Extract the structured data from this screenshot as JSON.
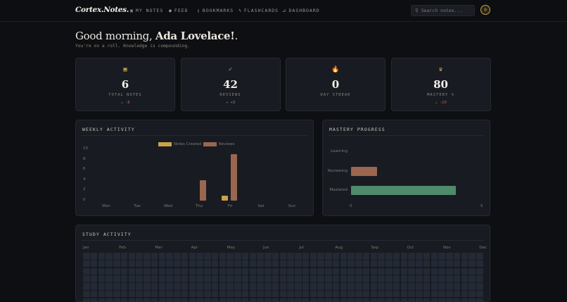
{
  "nav": {
    "logo": "Cortex.Notes.",
    "items": [
      {
        "label": "MY NOTES",
        "icon": "note-icon"
      },
      {
        "label": "FEED",
        "icon": "globe-icon"
      },
      {
        "label": "BOOKMARKS",
        "icon": "bookmark-icon"
      },
      {
        "label": "FLASHCARDS",
        "icon": "bolt-icon"
      },
      {
        "label": "DASHBOARD",
        "icon": "chart-icon"
      }
    ],
    "search_placeholder": "Search notes...",
    "avatar": "0"
  },
  "greeting": {
    "prefix": "Good morning, ",
    "name": "Ada Lovelace!",
    "suffix": ".",
    "subtitle": "You're on a roll. Knowledge is compounding."
  },
  "stats": [
    {
      "icon": "note-icon",
      "value": "6",
      "label": "TOTAL NOTES",
      "delta": "↘ -8",
      "delta_color": "#c0594a"
    },
    {
      "icon": "check-circle-icon",
      "value": "42",
      "label": "REVIEWS",
      "delta": "↗ +3",
      "delta_color": "#5f9f7c"
    },
    {
      "icon": "fire-icon",
      "value": "0",
      "label": "DAY STREAK",
      "delta": ""
    },
    {
      "icon": "trophy-icon",
      "value": "80",
      "label": "MASTERY %",
      "delta": "↘ -20",
      "delta_color": "#c0594a"
    }
  ],
  "colors": {
    "accent": "#c9a24a",
    "notes": "#c9a24a",
    "reviews": "#9a6650",
    "mastered": "#4f8a6a",
    "reviewing": "#9a6650"
  },
  "chart_data": [
    {
      "type": "bar",
      "title": "WEEKLY ACTIVITY",
      "categories": [
        "Mon",
        "Tue",
        "Wed",
        "Thu",
        "Fri",
        "Sat",
        "Sun"
      ],
      "series": [
        {
          "name": "Notes Created",
          "values": [
            0,
            0,
            0,
            0,
            1,
            0,
            0
          ]
        },
        {
          "name": "Reviews",
          "values": [
            0,
            0,
            0,
            4,
            9,
            0,
            0
          ]
        }
      ],
      "ylim": [
        0,
        10
      ],
      "yticks": [
        "0",
        "2",
        "4",
        "6",
        "8",
        "10"
      ],
      "legend": "top"
    },
    {
      "type": "bar",
      "orientation": "horizontal",
      "title": "MASTERY PROGRESS",
      "categories": [
        "Learning",
        "Reviewing",
        "Mastered"
      ],
      "values": [
        0,
        1,
        4
      ],
      "xlim": [
        0,
        5
      ],
      "xticks": [
        "0",
        "5"
      ]
    }
  ],
  "study": {
    "title": "STUDY ACTIVITY",
    "months": [
      "Jan",
      "Feb",
      "Mar",
      "Apr",
      "May",
      "Jun",
      "Jul",
      "Aug",
      "Sep",
      "Oct",
      "Nov",
      "Dec"
    ]
  }
}
